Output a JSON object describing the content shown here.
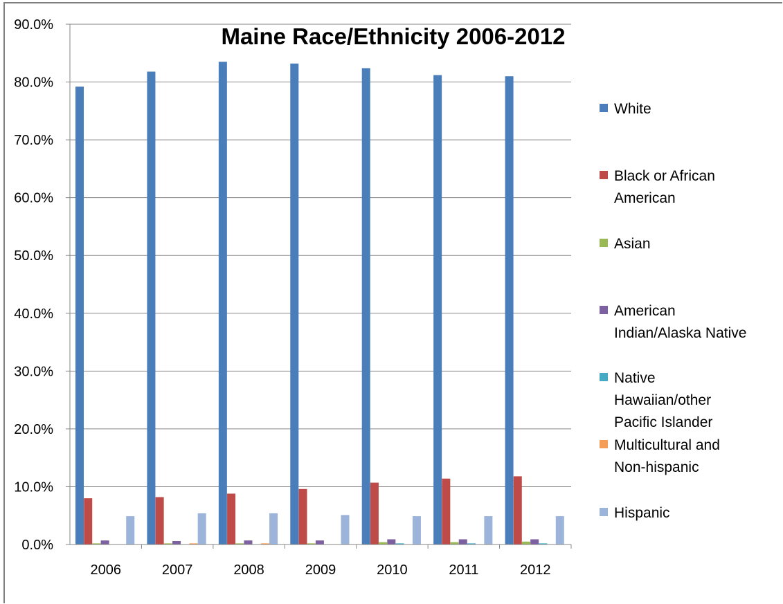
{
  "chart_data": {
    "type": "bar",
    "title": "Maine Race/Ethnicity 2006-2012",
    "xlabel": "",
    "ylabel": "",
    "ylim": [
      0,
      90
    ],
    "y_tick_step": 10,
    "y_tick_labels": [
      "0.0%",
      "10.0%",
      "20.0%",
      "30.0%",
      "40.0%",
      "50.0%",
      "60.0%",
      "70.0%",
      "80.0%",
      "90.0%"
    ],
    "grid": true,
    "legend_position": "right",
    "categories": [
      "2006",
      "2007",
      "2008",
      "2009",
      "2010",
      "2011",
      "2012"
    ],
    "series": [
      {
        "name": "White",
        "legend_lines": [
          "White"
        ],
        "color": "#4a7ebb",
        "values": [
          79.2,
          81.8,
          83.5,
          83.2,
          82.4,
          81.2,
          81.0
        ]
      },
      {
        "name": "Black or African American",
        "legend_lines": [
          "Black or African",
          "American"
        ],
        "color": "#be4b48",
        "values": [
          8.0,
          8.2,
          8.8,
          9.6,
          10.7,
          11.4,
          11.8
        ]
      },
      {
        "name": "Asian",
        "legend_lines": [
          "Asian"
        ],
        "color": "#98b954",
        "values": [
          0.2,
          0.2,
          0.2,
          0.2,
          0.4,
          0.4,
          0.5
        ]
      },
      {
        "name": "American Indian/Alaska Native",
        "legend_lines": [
          "American",
          "Indian/Alaska Native"
        ],
        "color": "#7d60a0",
        "values": [
          0.7,
          0.6,
          0.7,
          0.7,
          0.9,
          0.9,
          0.9
        ]
      },
      {
        "name": "Native Hawaiian/other Pacific Islander",
        "legend_lines": [
          "Native",
          "Hawaiian/other",
          "Pacific Islander"
        ],
        "color": "#46aac5",
        "values": [
          0.0,
          0.0,
          0.0,
          0.0,
          0.2,
          0.2,
          0.2
        ]
      },
      {
        "name": "Multicultural and Non-hispanic",
        "legend_lines": [
          "Multicultural and",
          "Non-hispanic"
        ],
        "color": "#f59d56",
        "values": [
          0.0,
          0.2,
          0.2,
          0.0,
          0.0,
          0.0,
          0.0
        ]
      },
      {
        "name": "Hispanic",
        "legend_lines": [
          "Hispanic"
        ],
        "color": "#9cb4da",
        "values": [
          4.9,
          5.4,
          5.4,
          5.1,
          4.9,
          4.9,
          4.9
        ]
      }
    ]
  }
}
